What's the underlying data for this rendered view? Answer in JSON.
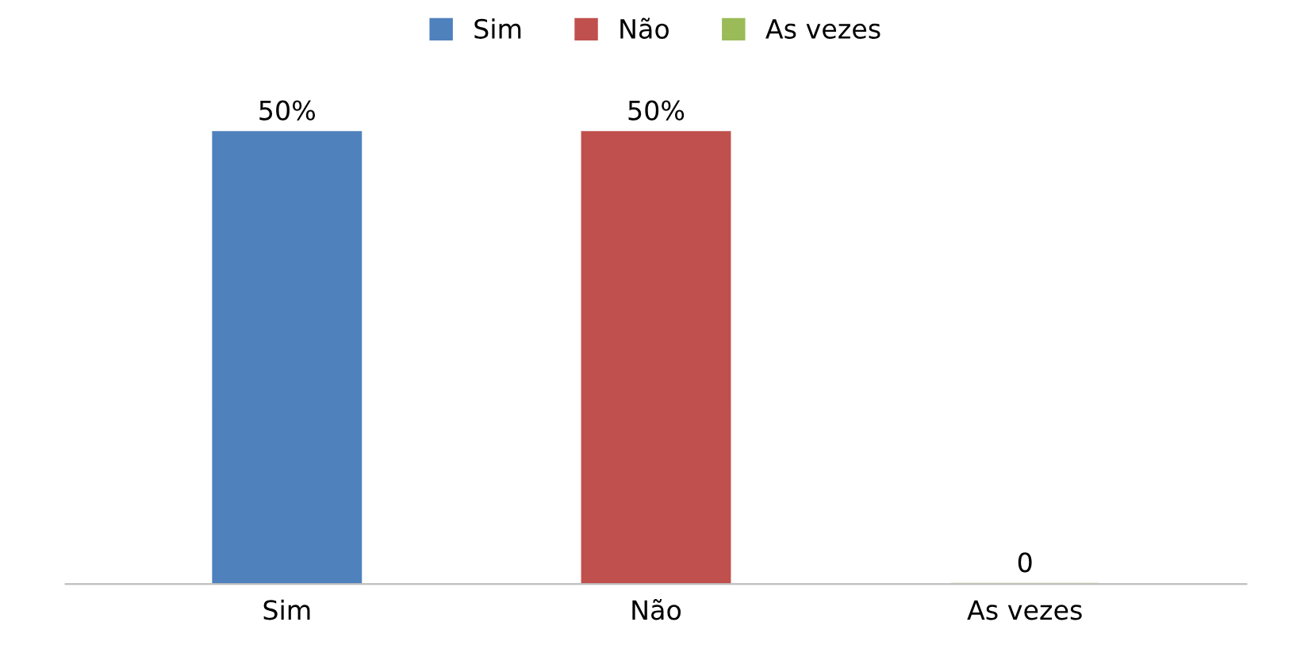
{
  "chart_data": {
    "type": "bar",
    "categories": [
      "Sim",
      "Não",
      "As vezes"
    ],
    "series": [
      {
        "name": "Sim",
        "color": "#4f81bd",
        "values": [
          50,
          null,
          null
        ],
        "value_labels": [
          "50%",
          null,
          null
        ]
      },
      {
        "name": "Não",
        "color": "#c0504d",
        "values": [
          null,
          50,
          null
        ],
        "value_labels": [
          null,
          "50%",
          null
        ]
      },
      {
        "name": "As vezes",
        "color": "#9bbb59",
        "values": [
          null,
          null,
          0
        ],
        "value_labels": [
          null,
          null,
          "0"
        ]
      }
    ],
    "legend": "top",
    "grid": false,
    "tick_labels": "x"
  }
}
